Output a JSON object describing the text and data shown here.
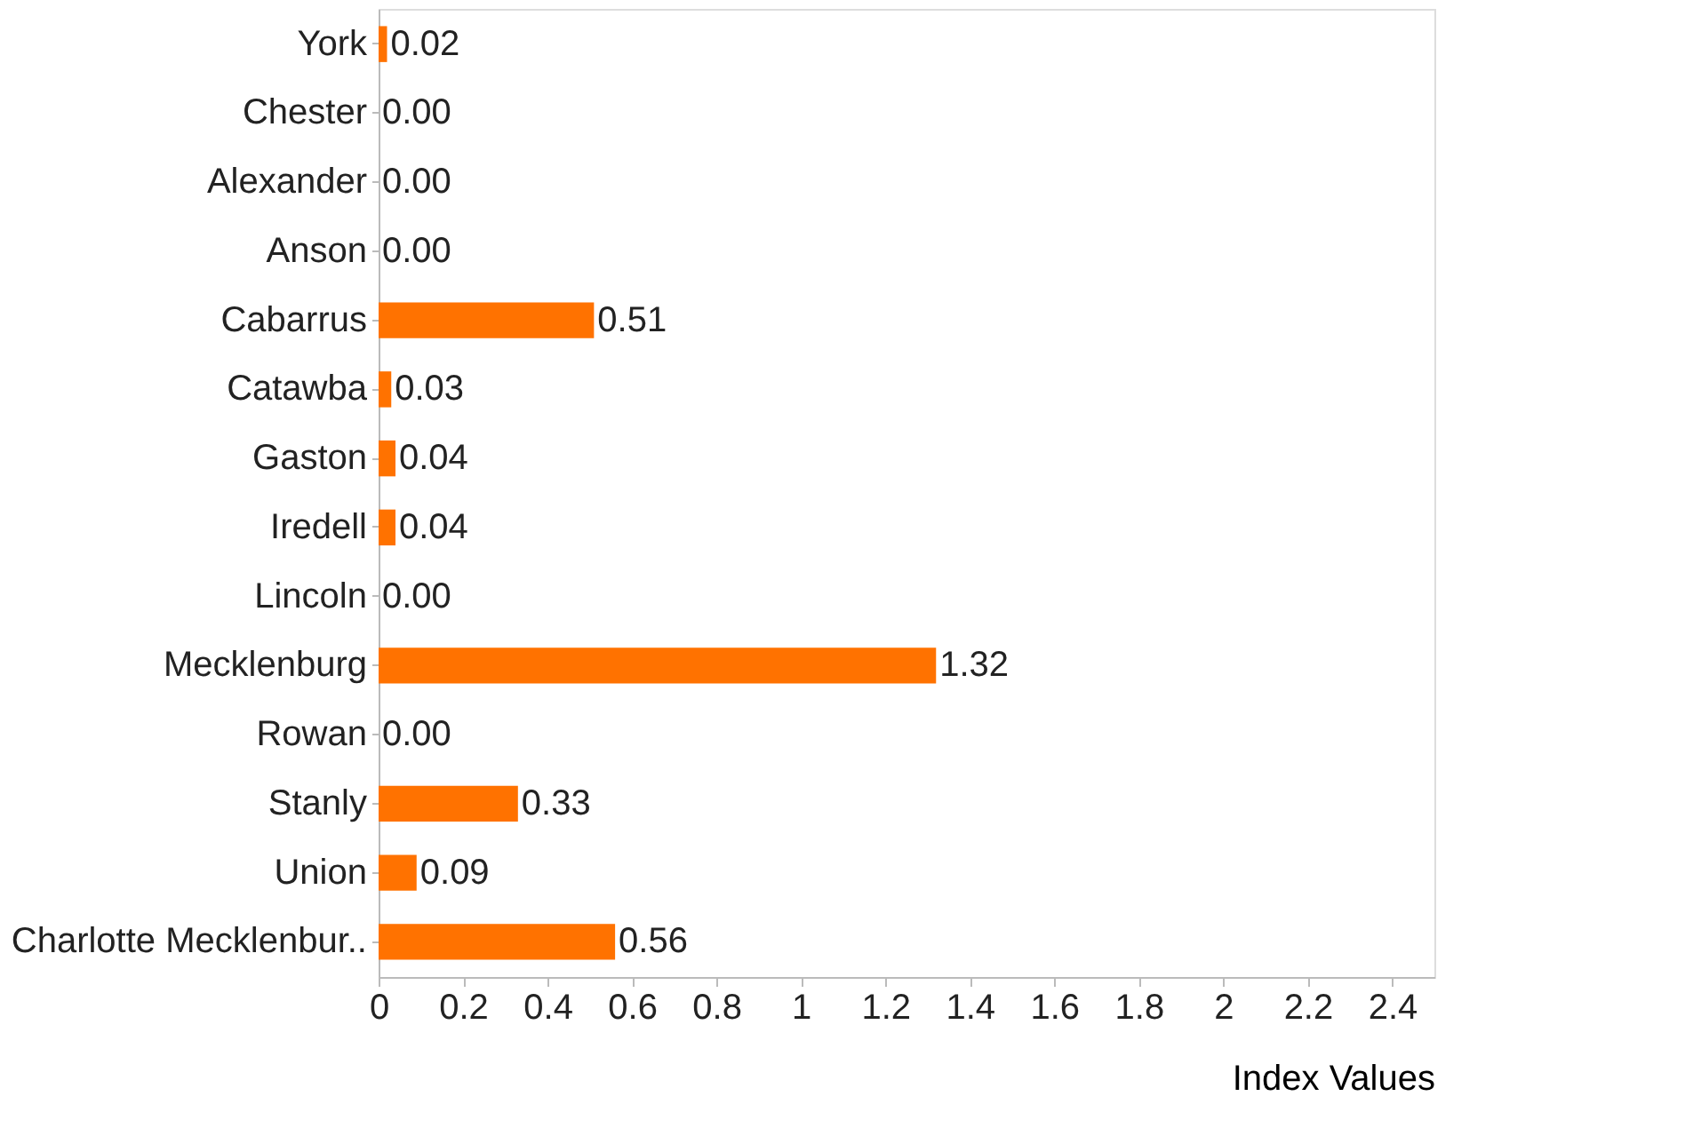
{
  "chart_data": {
    "type": "bar",
    "orientation": "horizontal",
    "xlabel": "Index Values",
    "categories": [
      "York",
      "Chester",
      "Alexander",
      "Anson",
      "Cabarrus",
      "Catawba",
      "Gaston",
      "Iredell",
      "Lincoln",
      "Mecklenburg",
      "Rowan",
      "Stanly",
      "Union",
      "Charlotte Mecklenbur.."
    ],
    "values": [
      0.02,
      0,
      0,
      0,
      0.51,
      0.03,
      0.04,
      0.04,
      0,
      1.32,
      0,
      0.33,
      0.09,
      0.56
    ],
    "value_labels": [
      "0.02",
      "0.00",
      "0.00",
      "0.00",
      "0.51",
      "0.03",
      "0.04",
      "0.04",
      "0.00",
      "1.32",
      "0.00",
      "0.33",
      "0.09",
      "0.56"
    ],
    "color": "#ff7200",
    "xlim": [
      0,
      2.5
    ],
    "xticks": [
      0,
      0.2,
      0.4,
      0.6,
      0.8,
      1,
      1.2,
      1.4,
      1.6,
      1.8,
      2,
      2.2,
      2.4
    ],
    "grid": false
  }
}
